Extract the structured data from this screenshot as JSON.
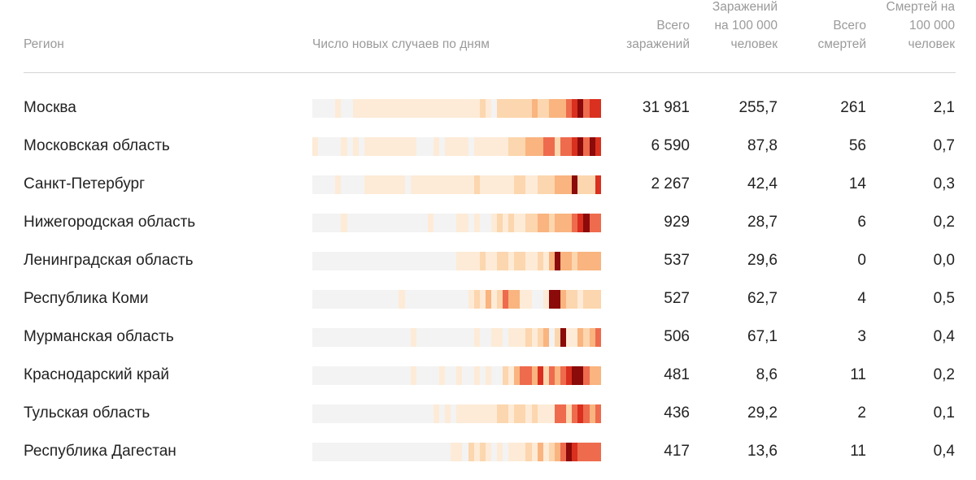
{
  "chart_data": {
    "type": "heatmap",
    "columns": {
      "region": "Регион",
      "daily": "Число новых случаев по дням",
      "total_cases": "Всего заражений",
      "cases_per_100k": "Заражений на 100 000 человек",
      "total_deaths": "Всего смертей",
      "deaths_per_100k": "Смертей на 100 000 человек"
    },
    "color_scale": [
      "#f3f3f3",
      "#fdebd7",
      "#fcd6ae",
      "#f9b47f",
      "#ee6b4d",
      "#d9301f",
      "#8b0a0a"
    ],
    "rows": [
      {
        "region": "Москва",
        "total_cases": "31 981",
        "cases_per_100k": "255,7",
        "total_deaths": "261",
        "deaths_per_100k": "2,1",
        "levels": [
          0,
          0,
          0,
          0,
          1,
          0,
          0,
          1,
          1,
          1,
          1,
          1,
          1,
          1,
          1,
          1,
          1,
          1,
          1,
          1,
          1,
          1,
          1,
          1,
          1,
          1,
          1,
          1,
          1,
          2,
          1,
          0,
          2,
          2,
          2,
          2,
          2,
          2,
          3,
          2,
          2,
          3,
          3,
          3,
          4,
          5,
          6,
          4,
          5,
          5
        ]
      },
      {
        "region": "Московская область",
        "total_cases": "6 590",
        "cases_per_100k": "87,8",
        "total_deaths": "56",
        "deaths_per_100k": "0,7",
        "levels": [
          1,
          0,
          0,
          0,
          0,
          1,
          0,
          1,
          0,
          1,
          1,
          1,
          1,
          1,
          1,
          1,
          1,
          1,
          0,
          0,
          0,
          1,
          0,
          1,
          1,
          1,
          1,
          0,
          1,
          1,
          1,
          1,
          1,
          1,
          2,
          2,
          2,
          3,
          3,
          3,
          4,
          4,
          2,
          4,
          4,
          5,
          6,
          4,
          6,
          5
        ]
      },
      {
        "region": "Санкт-Петербург",
        "total_cases": "2 267",
        "cases_per_100k": "42,4",
        "total_deaths": "14",
        "deaths_per_100k": "0,3",
        "levels": [
          0,
          0,
          0,
          0,
          1,
          0,
          0,
          0,
          0,
          1,
          1,
          1,
          1,
          1,
          1,
          1,
          0,
          1,
          1,
          1,
          1,
          1,
          1,
          1,
          1,
          1,
          1,
          1,
          2,
          1,
          1,
          1,
          1,
          1,
          1,
          2,
          2,
          1,
          1,
          2,
          2,
          2,
          3,
          3,
          3,
          6,
          2,
          2,
          2,
          5
        ]
      },
      {
        "region": "Нижегородская область",
        "total_cases": "929",
        "cases_per_100k": "28,7",
        "total_deaths": "6",
        "deaths_per_100k": "0,2",
        "levels": [
          0,
          0,
          0,
          0,
          0,
          1,
          0,
          0,
          0,
          0,
          0,
          0,
          0,
          0,
          0,
          0,
          0,
          0,
          0,
          0,
          1,
          0,
          0,
          0,
          0,
          1,
          1,
          0,
          1,
          0,
          0,
          1,
          2,
          1,
          2,
          1,
          1,
          2,
          2,
          3,
          3,
          2,
          3,
          3,
          3,
          4,
          5,
          6,
          4,
          4
        ]
      },
      {
        "region": "Ленинградская область",
        "total_cases": "537",
        "cases_per_100k": "29,6",
        "total_deaths": "0",
        "deaths_per_100k": "0,0",
        "levels": [
          0,
          0,
          0,
          0,
          0,
          0,
          0,
          0,
          0,
          0,
          0,
          0,
          0,
          0,
          0,
          0,
          0,
          0,
          0,
          0,
          0,
          0,
          0,
          0,
          0,
          1,
          1,
          1,
          1,
          2,
          1,
          1,
          2,
          2,
          1,
          2,
          2,
          1,
          1,
          2,
          1,
          3,
          6,
          3,
          3,
          2,
          3,
          3,
          3,
          3
        ]
      },
      {
        "region": "Республика Коми",
        "total_cases": "527",
        "cases_per_100k": "62,7",
        "total_deaths": "4",
        "deaths_per_100k": "0,5",
        "levels": [
          0,
          0,
          0,
          0,
          0,
          0,
          0,
          0,
          0,
          0,
          0,
          0,
          0,
          0,
          0,
          1,
          0,
          0,
          0,
          0,
          0,
          0,
          0,
          0,
          0,
          0,
          0,
          1,
          2,
          1,
          3,
          1,
          2,
          4,
          3,
          3,
          1,
          1,
          0,
          0,
          1,
          6,
          6,
          3,
          2,
          2,
          1,
          2,
          2,
          2
        ]
      },
      {
        "region": "Мурманская область",
        "total_cases": "506",
        "cases_per_100k": "67,1",
        "total_deaths": "3",
        "deaths_per_100k": "0,4",
        "levels": [
          0,
          0,
          0,
          0,
          0,
          0,
          0,
          0,
          0,
          0,
          0,
          0,
          0,
          0,
          0,
          0,
          0,
          1,
          0,
          0,
          0,
          0,
          0,
          0,
          0,
          0,
          0,
          0,
          1,
          0,
          0,
          1,
          1,
          0,
          1,
          1,
          1,
          2,
          1,
          2,
          3,
          0,
          2,
          6,
          1,
          1,
          3,
          2,
          3,
          4
        ]
      },
      {
        "region": "Краснодарский край",
        "total_cases": "481",
        "cases_per_100k": "8,6",
        "total_deaths": "11",
        "deaths_per_100k": "0,2",
        "levels": [
          0,
          0,
          0,
          0,
          0,
          0,
          0,
          0,
          0,
          0,
          0,
          0,
          0,
          0,
          0,
          0,
          0,
          1,
          0,
          0,
          0,
          0,
          1,
          0,
          0,
          1,
          0,
          0,
          1,
          0,
          1,
          0,
          0,
          2,
          1,
          3,
          4,
          4,
          3,
          5,
          2,
          4,
          3,
          4,
          5,
          6,
          6,
          4,
          3,
          3
        ]
      },
      {
        "region": "Тульская область",
        "total_cases": "436",
        "cases_per_100k": "29,2",
        "total_deaths": "2",
        "deaths_per_100k": "0,1",
        "levels": [
          0,
          0,
          0,
          0,
          0,
          0,
          0,
          0,
          0,
          0,
          0,
          0,
          0,
          0,
          0,
          0,
          0,
          0,
          0,
          0,
          0,
          1,
          0,
          1,
          0,
          1,
          1,
          1,
          1,
          1,
          1,
          1,
          2,
          2,
          1,
          2,
          2,
          1,
          2,
          1,
          1,
          1,
          4,
          4,
          2,
          4,
          5,
          4,
          3,
          4
        ]
      },
      {
        "region": "Республика Дагестан",
        "total_cases": "417",
        "cases_per_100k": "13,6",
        "total_deaths": "11",
        "deaths_per_100k": "0,4",
        "levels": [
          0,
          0,
          0,
          0,
          0,
          0,
          0,
          0,
          0,
          0,
          0,
          0,
          0,
          0,
          0,
          0,
          0,
          0,
          0,
          0,
          0,
          0,
          0,
          0,
          1,
          1,
          0,
          2,
          1,
          2,
          1,
          0,
          1,
          0,
          1,
          1,
          1,
          2,
          1,
          3,
          1,
          2,
          3,
          4,
          6,
          5,
          4,
          4,
          4,
          4
        ]
      }
    ]
  }
}
